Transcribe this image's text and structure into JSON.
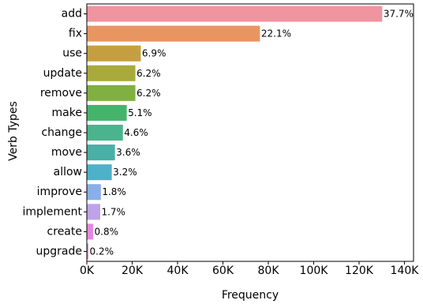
{
  "chart_data": {
    "type": "bar",
    "orientation": "horizontal",
    "title": "",
    "xlabel": "Frequency",
    "ylabel": "Verb Types",
    "xlim": [
      0,
      144000
    ],
    "grid": false,
    "categories": [
      "add",
      "fix",
      "use",
      "update",
      "remove",
      "make",
      "change",
      "move",
      "allow",
      "improve",
      "implement",
      "create",
      "upgrade"
    ],
    "values": [
      130200,
      76300,
      23800,
      21400,
      21400,
      17600,
      15900,
      12400,
      11000,
      6200,
      5900,
      2800,
      700
    ],
    "data_labels": [
      "37.7%",
      "22.1%",
      "6.9%",
      "6.2%",
      "6.2%",
      "5.1%",
      "4.6%",
      "3.6%",
      "3.2%",
      "1.8%",
      "1.7%",
      "0.8%",
      "0.2%"
    ],
    "colors": [
      "#f0949f",
      "#e99562",
      "#c59f3f",
      "#a9aa3c",
      "#7fb041",
      "#46b36a",
      "#49b48d",
      "#4aafa5",
      "#4db1c9",
      "#89aee9",
      "#bca3ea",
      "#e588e0",
      "#f78ac1"
    ],
    "x_ticks": [
      {
        "value": 0,
        "label": "0K"
      },
      {
        "value": 20000,
        "label": "20K"
      },
      {
        "value": 40000,
        "label": "40K"
      },
      {
        "value": 60000,
        "label": "60K"
      },
      {
        "value": 80000,
        "label": "80K"
      },
      {
        "value": 100000,
        "label": "100K"
      },
      {
        "value": 120000,
        "label": "120K"
      },
      {
        "value": 140000,
        "label": "140K"
      }
    ]
  }
}
